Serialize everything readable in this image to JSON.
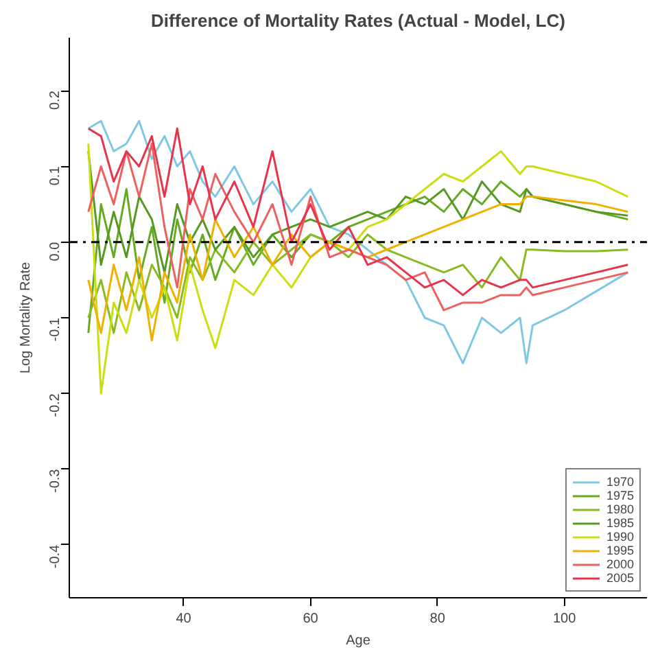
{
  "chart_data": {
    "type": "line",
    "title": "Difference of Mortality Rates (Actual - Model, LC)",
    "xlabel": "Age",
    "ylabel": "Log Mortality Rate",
    "x": [
      25,
      27,
      29,
      31,
      33,
      35,
      37,
      39,
      41,
      43,
      45,
      48,
      51,
      54,
      57,
      60,
      63,
      66,
      69,
      72,
      75,
      78,
      81,
      84,
      87,
      90,
      93,
      94,
      95,
      100,
      105,
      110
    ],
    "xlim": [
      22,
      113
    ],
    "ylim": [
      -0.47,
      0.27
    ],
    "xticks": [
      40,
      60,
      80,
      100
    ],
    "yticks": [
      -0.4,
      -0.3,
      -0.2,
      -0.1,
      {
        "value": 0,
        "label": "0.0"
      },
      0.1,
      0.2
    ],
    "grid": false,
    "legend": "bottom right",
    "marker": "none",
    "line_style": "solid",
    "ref_lines": [
      {
        "axis": "y",
        "value": 0,
        "color": "#000000",
        "line_style": "dashdot"
      }
    ],
    "series": [
      {
        "name": "1970",
        "color": "#7ec8e3",
        "values": [
          0.15,
          0.16,
          0.12,
          0.13,
          0.16,
          0.11,
          0.14,
          0.1,
          0.12,
          0.08,
          0.06,
          0.1,
          0.05,
          0.08,
          0.04,
          0.07,
          0.02,
          0.01,
          -0.01,
          -0.03,
          -0.05,
          -0.1,
          -0.11,
          -0.16,
          -0.1,
          -0.12,
          -0.1,
          -0.16,
          -0.11,
          -0.09,
          -0.065,
          -0.04
        ]
      },
      {
        "name": "1975",
        "color": "#66aa22",
        "values": [
          -0.12,
          0.05,
          -0.02,
          0.07,
          -0.05,
          0.02,
          -0.08,
          0.03,
          -0.04,
          0.01,
          -0.05,
          0.02,
          -0.03,
          0.01,
          -0.02,
          0.01,
          0.0,
          0.02,
          0.03,
          0.04,
          0.05,
          0.06,
          0.04,
          0.07,
          0.05,
          0.08,
          0.06,
          0.07,
          0.06,
          0.05,
          0.04,
          0.03
        ]
      },
      {
        "name": "1980",
        "color": "#88bb22",
        "values": [
          -0.1,
          -0.05,
          -0.12,
          -0.04,
          -0.09,
          -0.03,
          -0.06,
          -0.1,
          -0.02,
          -0.05,
          -0.01,
          -0.04,
          0.0,
          -0.03,
          -0.01,
          0.01,
          0.0,
          -0.02,
          0.01,
          -0.01,
          -0.02,
          -0.03,
          -0.04,
          -0.03,
          -0.06,
          -0.02,
          -0.05,
          -0.01,
          -0.01,
          -0.012,
          -0.012,
          -0.01
        ]
      },
      {
        "name": "1985",
        "color": "#559922",
        "values": [
          0.12,
          -0.03,
          0.04,
          -0.02,
          0.06,
          0.03,
          -0.04,
          0.05,
          0.0,
          0.03,
          -0.01,
          0.02,
          -0.02,
          0.01,
          0.02,
          0.03,
          0.02,
          0.03,
          0.04,
          0.03,
          0.06,
          0.05,
          0.07,
          0.03,
          0.08,
          0.05,
          0.04,
          0.07,
          0.06,
          0.05,
          0.04,
          0.035
        ]
      },
      {
        "name": "1990",
        "color": "#ccdd11",
        "values": [
          0.13,
          -0.2,
          -0.08,
          -0.12,
          -0.05,
          -0.1,
          -0.06,
          -0.13,
          -0.03,
          -0.09,
          -0.14,
          -0.05,
          -0.07,
          -0.03,
          -0.06,
          -0.02,
          0.0,
          -0.01,
          0.02,
          0.03,
          0.05,
          0.07,
          0.09,
          0.08,
          0.1,
          0.12,
          0.09,
          0.1,
          0.1,
          0.09,
          0.08,
          0.06
        ]
      },
      {
        "name": "1995",
        "color": "#f0b000",
        "values": [
          -0.05,
          -0.12,
          -0.03,
          -0.09,
          -0.02,
          -0.13,
          -0.04,
          -0.08,
          0.01,
          -0.05,
          0.03,
          -0.02,
          0.02,
          -0.03,
          0.01,
          -0.02,
          0.0,
          -0.01,
          -0.02,
          -0.01,
          0.0,
          0.01,
          0.02,
          0.03,
          0.04,
          0.05,
          0.05,
          0.06,
          0.06,
          0.055,
          0.05,
          0.04
        ]
      },
      {
        "name": "2000",
        "color": "#ee6060",
        "values": [
          0.04,
          0.1,
          0.05,
          0.12,
          0.06,
          0.13,
          0.02,
          -0.06,
          0.07,
          0.03,
          0.09,
          0.04,
          0.0,
          0.05,
          -0.03,
          0.06,
          -0.02,
          -0.01,
          -0.02,
          -0.03,
          -0.05,
          -0.04,
          -0.09,
          -0.08,
          -0.08,
          -0.07,
          -0.07,
          -0.06,
          -0.07,
          -0.06,
          -0.05,
          -0.04
        ]
      },
      {
        "name": "2005",
        "color": "#e8334a",
        "values": [
          0.15,
          0.14,
          0.08,
          0.12,
          0.1,
          0.14,
          0.06,
          0.15,
          0.05,
          0.1,
          0.03,
          0.08,
          0.02,
          0.12,
          0.0,
          0.05,
          -0.01,
          0.02,
          -0.03,
          -0.02,
          -0.04,
          -0.06,
          -0.05,
          -0.07,
          -0.05,
          -0.06,
          -0.05,
          -0.05,
          -0.06,
          -0.05,
          -0.04,
          -0.03
        ]
      }
    ]
  }
}
